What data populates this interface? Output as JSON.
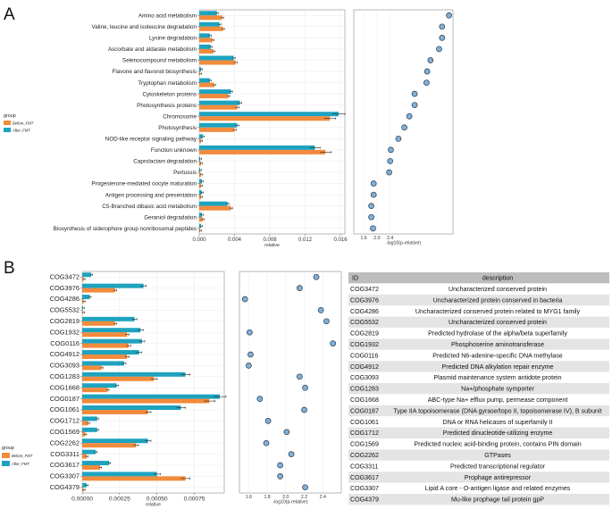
{
  "colors": {
    "before": "#F28B3C",
    "after": "#1EA3BF",
    "dot": "#7FB0D8",
    "grid": "#EBEBEB",
    "row_alt": "#E4E4E4",
    "header": "#BDBDBD"
  },
  "chart_data": [
    {
      "panel": "A",
      "type": "bar",
      "orientation": "horizontal",
      "categories": [
        "Amino acid metabolism",
        "Valine, leucine and isoleucine degradation",
        "Lysine degradation",
        "Ascorbate and aldarate metabolism",
        "Selenocompound metabolism",
        "Flavone and flavonol biosynthesis",
        "Tryptophan metabolism",
        "Cytoskeleton proteins",
        "Photosynthesis proteins",
        "Chromosome",
        "Photosynthesis",
        "NOD-like receptor signaling pathway",
        "Function unknown",
        "Caprolactam degradation",
        "Pertussis",
        "Progesterone-mediated oocyte maturation",
        "Antigen processing and presentation",
        "C5-Branched dibasic acid metabolism",
        "Geraniol degradation",
        "Biosynthesis of siderophore group nonribosomal peptides"
      ],
      "series": [
        {
          "name": "Before_FMT",
          "values": [
            0.0026,
            0.0027,
            0.0015,
            0.0016,
            0.0041,
            0.0001,
            0.0017,
            0.0033,
            0.0043,
            0.0148,
            0.004,
            0.0002,
            0.0143,
            0.0002,
            0.0002,
            0.0002,
            0.0002,
            0.0036,
            0.0004,
            0.0001
          ]
        },
        {
          "name": "After_FMT",
          "values": [
            0.002,
            0.0023,
            0.0012,
            0.0013,
            0.0039,
            0.0002,
            0.0012,
            0.0036,
            0.0046,
            0.0158,
            0.0043,
            0.0004,
            0.0131,
            0.0001,
            0.0001,
            0.0003,
            0.0003,
            0.0032,
            0.0003,
            0.0002
          ]
        }
      ],
      "xlabel": "relative",
      "xlim": [
        0,
        0.0165
      ],
      "xticks": [
        "0.000",
        "0.004",
        "0.008",
        "0.012",
        "0.016"
      ],
      "legend_title": "group",
      "legend_position": "left"
    },
    {
      "panel": "A",
      "type": "scatter",
      "xlabel": "-log10(p-relative)",
      "xlim": [
        1.3,
        4.3
      ],
      "xticks": [
        "1.6",
        "2.0",
        "2.4"
      ],
      "values": [
        4.18,
        3.97,
        3.97,
        3.88,
        3.62,
        3.52,
        3.5,
        3.14,
        3.14,
        2.98,
        2.83,
        2.65,
        2.42,
        2.4,
        2.37,
        1.9,
        1.9,
        1.83,
        1.83,
        1.88
      ]
    },
    {
      "panel": "B",
      "type": "bar",
      "orientation": "horizontal",
      "categories": [
        "COG3472",
        "COG3976",
        "COG4286",
        "COG5532",
        "COG2819",
        "COG1932",
        "COG0116",
        "COG4912",
        "COG3093",
        "COG1283",
        "COG1668",
        "COG0187",
        "COG1061",
        "COG1712",
        "COG1569",
        "COG2262",
        "COG3311",
        "COG3617",
        "COG3307",
        "COG4379"
      ],
      "series": [
        {
          "name": "Before_FMT",
          "values": [
            1e-05,
            0.00022,
            1e-05,
            5e-06,
            0.00022,
            0.0003,
            0.00031,
            0.0003,
            0.00013,
            0.00048,
            0.00017,
            0.00085,
            0.00044,
            4e-05,
            2e-05,
            0.00036,
            3e-05,
            0.00012,
            0.00069,
            1e-05
          ]
        },
        {
          "name": "After_FMT",
          "values": [
            6e-05,
            0.00041,
            5e-05,
            5e-06,
            0.00035,
            0.00039,
            0.0004,
            0.00038,
            0.00028,
            0.00069,
            0.00023,
            0.00092,
            0.00066,
            0.0001,
            0.0001,
            0.00044,
            9e-05,
            0.00018,
            0.0005,
            3e-05
          ]
        }
      ],
      "xlabel": "relative",
      "xlim": [
        0,
        0.00095
      ],
      "xticks": [
        "0.00000",
        "0.00025",
        "0.00050",
        "0.00075"
      ],
      "legend_title": "group",
      "legend_position": "left"
    },
    {
      "panel": "B",
      "type": "scatter",
      "xlabel": "-log10(p-relative)",
      "xlim": [
        1.5,
        2.6
      ],
      "xticks": [
        "1.6",
        "1.8",
        "2.0",
        "2.2",
        "2.4"
      ],
      "values": [
        2.33,
        2.15,
        1.56,
        2.38,
        2.44,
        1.61,
        2.51,
        1.62,
        1.6,
        2.15,
        2.21,
        1.72,
        2.2,
        1.81,
        2.01,
        1.79,
        2.06,
        1.94,
        1.94,
        2.21
      ]
    }
  ],
  "panel_labels": {
    "a": "A",
    "b": "B"
  },
  "legend": {
    "title": "group",
    "before": "Before_FMT",
    "after": "After_FMT"
  },
  "table": {
    "headers": [
      "ID",
      "description"
    ],
    "rows": [
      [
        "COG3472",
        "Uncharacterized conserved protein"
      ],
      [
        "COG3976",
        "Uncharacterized protein conserved in bacteria"
      ],
      [
        "COG4286",
        "Uncharacterized conserved protein related to MYG1 family"
      ],
      [
        "COG5532",
        "Uncharacterized conserved protein"
      ],
      [
        "COG2819",
        "Predicted hydrolase of the alpha/beta superfamily"
      ],
      [
        "COG1932",
        "Phosphoserine aminotransferase"
      ],
      [
        "COG0116",
        "Predicted N6-adenine-specific DNA methylase"
      ],
      [
        "COG4912",
        "Predicted DNA alkylation repair enzyme"
      ],
      [
        "COG3093",
        "Plasmid maintenance system antidote protein"
      ],
      [
        "COG1283",
        "Na+/phosphate symporter"
      ],
      [
        "COG1668",
        "ABC-type Na+ efflux pump, permease component"
      ],
      [
        "COG0187",
        "Type IIA topoisomerase (DNA gyrase/topo II, topoisomerase IV), B subunit"
      ],
      [
        "COG1061",
        "DNA or RNA helicases of superfamily II"
      ],
      [
        "COG1712",
        "Predicted dinucleotide-utilizing enzyme"
      ],
      [
        "COG1569",
        "Predicted nucleic acid-binding protein, contains PIN domain"
      ],
      [
        "COG2262",
        "GTPases"
      ],
      [
        "COG3311",
        "Predicted transcriptional regulator"
      ],
      [
        "COG3617",
        "Prophage antirepressor"
      ],
      [
        "COG3307",
        "Lipid A core - O-antigen ligase and related enzymes"
      ],
      [
        "COG4379",
        "Mu-like prophage tail protein gpP"
      ]
    ]
  }
}
